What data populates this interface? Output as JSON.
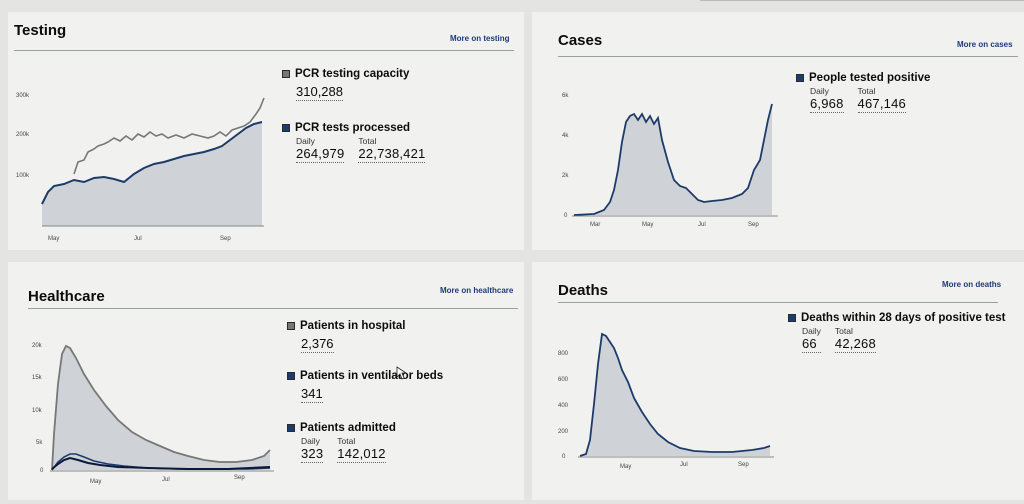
{
  "testing": {
    "title": "Testing",
    "more_link": "More on testing",
    "pcr_capacity": {
      "label": "PCR testing capacity",
      "value": "310,288"
    },
    "pcr_processed": {
      "label": "PCR tests processed",
      "daily_label": "Daily",
      "daily": "264,979",
      "total_label": "Total",
      "total": "22,738,421"
    },
    "chart_y_ticks": [
      "300k",
      "200k",
      "100k"
    ],
    "chart_x_ticks": [
      "May",
      "Jul",
      "Sep"
    ]
  },
  "cases": {
    "title": "Cases",
    "more_link": "More on cases",
    "tested_positive": {
      "label": "People tested positive",
      "daily_label": "Daily",
      "daily": "6,968",
      "total_label": "Total",
      "total": "467,146"
    },
    "chart_y_ticks": [
      "6k",
      "4k",
      "2k",
      "0"
    ],
    "chart_x_ticks": [
      "Mar",
      "May",
      "Jul",
      "Sep"
    ]
  },
  "healthcare": {
    "title": "Healthcare",
    "more_link": "More on healthcare",
    "in_hospital": {
      "label": "Patients in hospital",
      "value": "2,376"
    },
    "ventilator": {
      "label": "Patients in ventilator beds",
      "value": "341"
    },
    "admitted": {
      "label": "Patients admitted",
      "daily_label": "Daily",
      "daily": "323",
      "total_label": "Total",
      "total": "142,012"
    },
    "chart_y_ticks": [
      "20k",
      "15k",
      "10k",
      "5k",
      "0"
    ],
    "chart_x_ticks": [
      "May",
      "Jul",
      "Sep"
    ]
  },
  "deaths": {
    "title": "Deaths",
    "more_link": "More on deaths",
    "within_28": {
      "label": "Deaths within 28 days of positive test",
      "daily_label": "Daily",
      "daily": "66",
      "total_label": "Total",
      "total": "42,268"
    },
    "chart_y_ticks": [
      "800",
      "600",
      "400",
      "200",
      "0"
    ],
    "chart_x_ticks": [
      "May",
      "Jul",
      "Sep"
    ]
  },
  "colors": {
    "series_dark": "#1d3b6a",
    "series_grey": "#777777",
    "area_fill": "#c9cdd1"
  }
}
